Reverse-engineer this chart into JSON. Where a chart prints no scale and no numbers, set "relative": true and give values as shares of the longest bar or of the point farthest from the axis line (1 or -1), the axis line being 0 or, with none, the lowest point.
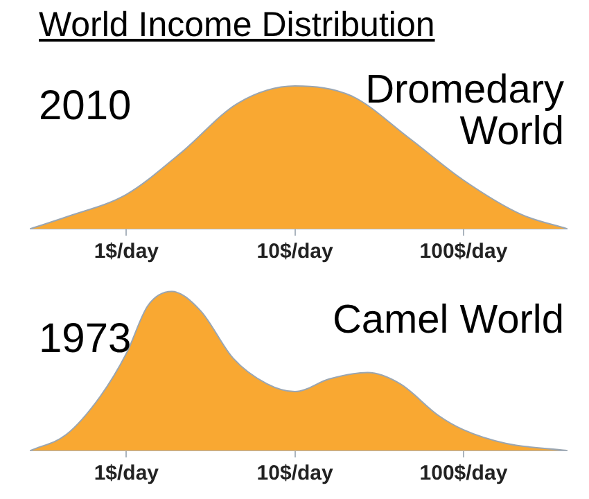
{
  "chart_data": [
    {
      "type": "area",
      "title": "World Income Distribution",
      "relative": true,
      "log": "x",
      "color": "#f9a832",
      "annotations": [
        "2010",
        "Dromedary World"
      ],
      "x": [
        0.27,
        0.45,
        1,
        2.1,
        4.6,
        10,
        21.7,
        47,
        100,
        220,
        410
      ],
      "values": [
        0,
        0.086,
        0.24,
        0.53,
        0.88,
        1,
        0.93,
        0.64,
        0.34,
        0.1,
        0
      ],
      "xlim": [
        0.27,
        410
      ],
      "xticks": [
        {
          "value": 1,
          "label": "1$/day"
        },
        {
          "value": 10,
          "label": "10$/day"
        },
        {
          "value": 100,
          "label": "100$/day"
        }
      ]
    },
    {
      "type": "area",
      "relative": true,
      "log": "x",
      "color": "#f9a832",
      "annotations": [
        "1973",
        "Camel World"
      ],
      "x": [
        0.27,
        0.44,
        0.7,
        1,
        1.34,
        1.86,
        2.75,
        4.3,
        6.8,
        10,
        16,
        27,
        42,
        71,
        100,
        178,
        410
      ],
      "values": [
        0,
        0.1,
        0.34,
        0.61,
        0.91,
        1,
        0.88,
        0.58,
        0.42,
        0.37,
        0.45,
        0.49,
        0.42,
        0.22,
        0.13,
        0.045,
        0
      ],
      "xlim": [
        0.27,
        410
      ],
      "xticks": [
        {
          "value": 1,
          "label": "1$/day"
        },
        {
          "value": 10,
          "label": "10$/day"
        },
        {
          "value": 100,
          "label": "100$/day"
        }
      ]
    }
  ]
}
